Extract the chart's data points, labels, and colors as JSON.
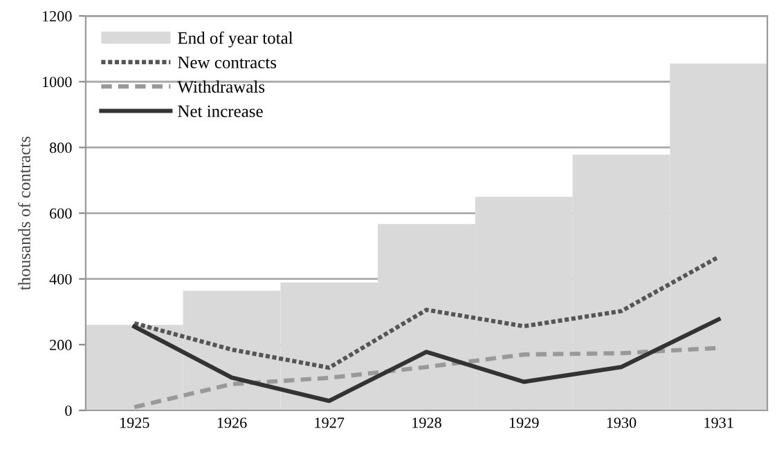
{
  "chart_data": {
    "type": "bar",
    "ylabel": "thousands of contracts",
    "categories": [
      "1925",
      "1926",
      "1927",
      "1928",
      "1929",
      "1930",
      "1931"
    ],
    "series": [
      {
        "name": "End of year total",
        "color": "#d9d9d9",
        "values": [
          260,
          364,
          389,
          567,
          650,
          778,
          1055
        ]
      },
      {
        "name": "New contracts",
        "type": "line",
        "line_style": "dotted",
        "color": "#555555",
        "values": [
          265,
          185,
          130,
          306,
          256,
          302,
          467
        ]
      },
      {
        "name": "Withdrawals",
        "type": "line",
        "line_style": "dashed",
        "color": "#999999",
        "values": [
          10,
          80,
          99,
          132,
          170,
          174,
          190
        ]
      },
      {
        "name": "Net increase",
        "type": "line",
        "line_style": "solid",
        "color": "#333333",
        "values": [
          255,
          100,
          29,
          178,
          87,
          132,
          277
        ]
      }
    ],
    "ylim": [
      0,
      1200
    ],
    "yticks": [
      0,
      200,
      400,
      600,
      800,
      1000,
      1200
    ],
    "grid": "y",
    "legend": "top left"
  }
}
